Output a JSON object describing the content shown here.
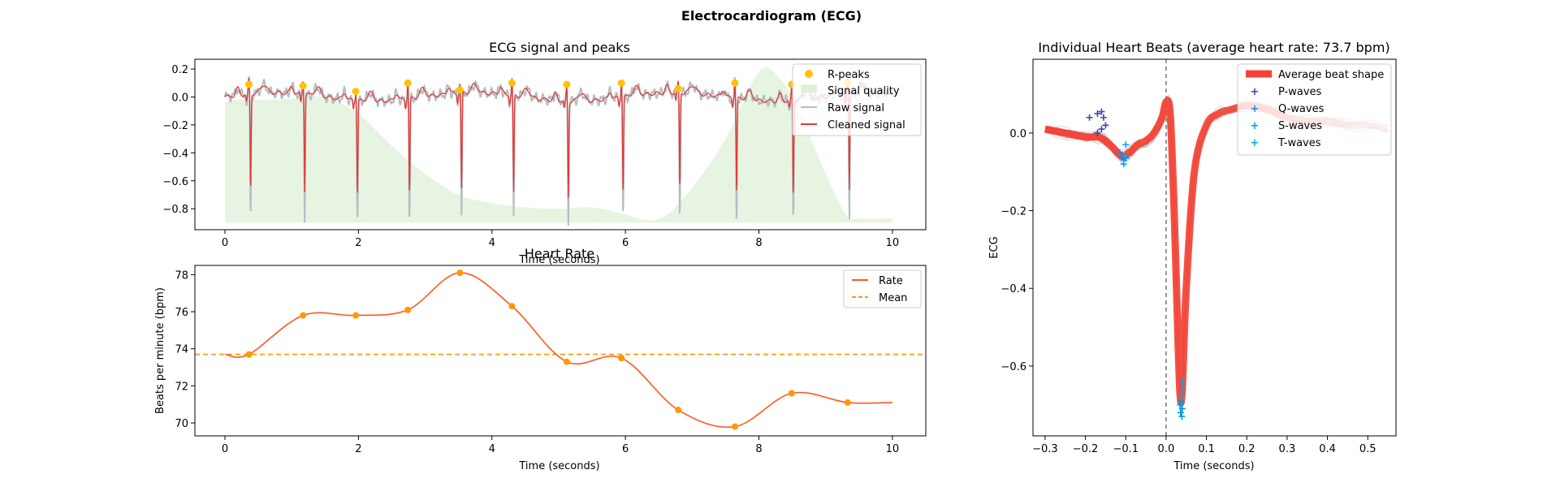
{
  "suptitle": "Electrocardiogram (ECG)",
  "colors": {
    "r_peaks": "#FFC107",
    "quality": "#DFF0D8",
    "raw": "#B0BEC5",
    "cleaned": "#E53935",
    "rate": "#FF5722",
    "mean": "#FF9800",
    "avg_beat": "#F44336",
    "p_waves": "#3949AB",
    "q_waves": "#1E88E5",
    "s_waves": "#039BE5",
    "t_waves": "#03A9F4",
    "individual_beats": "#999999"
  },
  "chart_data": [
    {
      "id": "ecg",
      "type": "line",
      "title": "ECG signal and peaks",
      "xlabel": "Time (seconds)",
      "ylabel": "",
      "xlim": [
        -0.45,
        10.5
      ],
      "ylim": [
        -0.95,
        0.27
      ],
      "xticks": [
        0,
        2,
        4,
        6,
        8,
        10
      ],
      "yticks": [
        -0.8,
        -0.6,
        -0.4,
        -0.2,
        0.0,
        0.2
      ],
      "legend": [
        "R-peaks",
        "Signal quality",
        "Raw signal",
        "Cleaned signal"
      ],
      "legend_position": "top-right",
      "r_peaks": {
        "x": [
          0.36,
          1.17,
          1.96,
          2.74,
          3.52,
          4.3,
          5.12,
          5.94,
          6.79,
          7.64,
          8.49,
          9.33
        ],
        "y": [
          0.09,
          0.08,
          0.04,
          0.1,
          0.05,
          0.1,
          0.09,
          0.1,
          0.06,
          0.1,
          0.09,
          0.1
        ]
      },
      "trough_y": -0.7,
      "raw_trough_y": -0.9,
      "signal_quality": {
        "x": [
          0,
          0.2,
          0.6,
          1.0,
          1.5,
          2.0,
          2.5,
          3.0,
          3.5,
          4.0,
          4.5,
          5.0,
          5.5,
          6.0,
          6.3,
          6.6,
          7.0,
          7.5,
          8.0,
          8.3,
          8.6,
          9.0,
          9.3,
          9.5,
          10.0
        ],
        "y": [
          -0.04,
          -0.02,
          -0.02,
          -0.01,
          0.0,
          -0.12,
          -0.35,
          -0.55,
          -0.7,
          -0.76,
          -0.79,
          -0.8,
          -0.79,
          -0.84,
          -0.88,
          -0.85,
          -0.65,
          -0.3,
          0.18,
          0.14,
          -0.1,
          -0.55,
          -0.84,
          -0.87,
          -0.87
        ]
      },
      "quality_baseline": -0.9
    },
    {
      "id": "rate",
      "type": "line",
      "title": "Heart Rate",
      "xlabel": "Time (seconds)",
      "ylabel": "Beats per minute (bpm)",
      "xlim": [
        -0.45,
        10.5
      ],
      "ylim": [
        69.3,
        78.5
      ],
      "xticks": [
        0,
        2,
        4,
        6,
        8,
        10
      ],
      "yticks": [
        70,
        72,
        74,
        76,
        78
      ],
      "legend": [
        "Rate",
        "Mean"
      ],
      "legend_position": "top-right",
      "mean": 73.7,
      "points": {
        "x": [
          0.36,
          1.17,
          1.96,
          2.74,
          3.52,
          4.3,
          5.12,
          5.94,
          6.79,
          7.64,
          8.49,
          9.33
        ],
        "y": [
          73.7,
          75.8,
          75.8,
          76.1,
          78.1,
          76.3,
          73.3,
          73.5,
          70.7,
          69.8,
          71.6,
          71.1
        ]
      },
      "line_start": [
        0,
        73.7
      ],
      "line_end": [
        10,
        71.1
      ]
    },
    {
      "id": "beats",
      "type": "line",
      "title": "Individual Heart Beats (average heart rate: 73.7 bpm)",
      "xlabel": "Time (seconds)",
      "ylabel": "ECG",
      "xlim": [
        -0.33,
        0.57
      ],
      "ylim": [
        -0.78,
        0.19
      ],
      "xticks": [
        -0.3,
        -0.2,
        -0.1,
        0.0,
        0.1,
        0.2,
        0.3,
        0.4,
        0.5
      ],
      "yticks": [
        -0.6,
        -0.4,
        -0.2,
        0.0
      ],
      "legend": [
        "Average beat shape",
        "P-waves",
        "Q-waves",
        "S-waves",
        "T-waves"
      ],
      "legend_position": "top-right",
      "vline_x": 0.0,
      "average": {
        "x": [
          -0.3,
          -0.25,
          -0.2,
          -0.17,
          -0.15,
          -0.13,
          -0.11,
          -0.09,
          -0.07,
          -0.05,
          -0.03,
          -0.01,
          0.0,
          0.01,
          0.02,
          0.03,
          0.035,
          0.04,
          0.05,
          0.07,
          0.1,
          0.13,
          0.16,
          0.2,
          0.25,
          0.3,
          0.35,
          0.4,
          0.45,
          0.5,
          0.55
        ],
        "y": [
          0.01,
          0.0,
          -0.01,
          -0.01,
          -0.02,
          -0.04,
          -0.06,
          -0.05,
          -0.03,
          -0.02,
          0.0,
          0.04,
          0.08,
          0.05,
          -0.2,
          -0.55,
          -0.68,
          -0.66,
          -0.4,
          -0.1,
          0.02,
          0.05,
          0.06,
          0.07,
          0.06,
          0.04,
          0.03,
          0.03,
          0.02,
          0.02,
          0.01
        ]
      },
      "p_waves": {
        "x": [
          -0.19,
          -0.17,
          -0.16,
          -0.155,
          -0.15,
          -0.16,
          -0.17
        ],
        "y": [
          0.04,
          0.05,
          0.055,
          0.04,
          0.02,
          0.01,
          0.0
        ]
      },
      "q_waves": {
        "x": [
          -0.115,
          -0.11,
          -0.105,
          -0.1
        ],
        "y": [
          -0.05,
          -0.06,
          -0.07,
          -0.065
        ]
      },
      "s_waves": {
        "x": [
          0.035,
          0.036,
          0.038,
          0.039,
          0.04
        ],
        "y": [
          -0.7,
          -0.72,
          -0.69,
          -0.73,
          -0.71
        ]
      },
      "t_waves": {
        "x": [
          -0.1,
          -0.105,
          -0.1,
          0.04,
          0.042,
          0.038
        ],
        "y": [
          -0.03,
          -0.08,
          -0.06,
          -0.64,
          -0.66,
          -0.68
        ]
      }
    }
  ]
}
